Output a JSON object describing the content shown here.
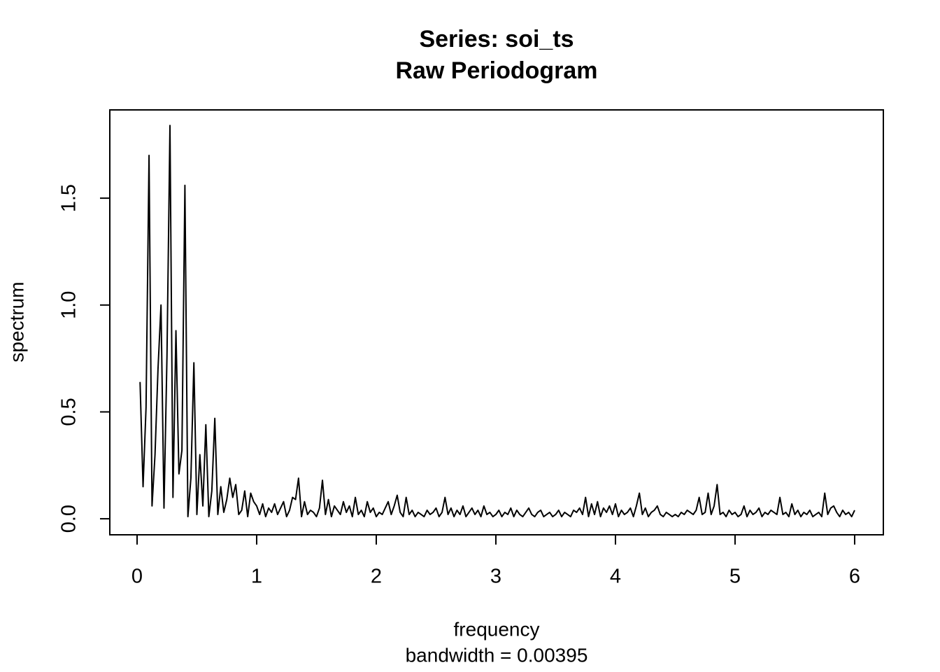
{
  "chart_data": {
    "type": "line",
    "title": "Series: soi_ts",
    "subtitle": "Raw Periodogram",
    "xlabel": "frequency",
    "sub": "bandwidth = 0.00395",
    "ylabel": "spectrum",
    "color": "#000000",
    "xlim": [
      -0.228,
      6.24
    ],
    "ylim": [
      -0.075,
      1.913
    ],
    "xticks": [
      0,
      1,
      2,
      3,
      4,
      5,
      6
    ],
    "yticks": [
      {
        "value": 0,
        "label": "0.0"
      },
      0.5,
      {
        "value": 1,
        "label": "1.0"
      },
      1.5
    ],
    "x": [
      0.025,
      0.05,
      0.075,
      0.1,
      0.125,
      0.15,
      0.175,
      0.2,
      0.225,
      0.25,
      0.275,
      0.3,
      0.325,
      0.35,
      0.375,
      0.4,
      0.425,
      0.45,
      0.475,
      0.5,
      0.525,
      0.55,
      0.575,
      0.6,
      0.625,
      0.65,
      0.675,
      0.7,
      0.725,
      0.75,
      0.775,
      0.8,
      0.825,
      0.85,
      0.875,
      0.9,
      0.925,
      0.95,
      0.975,
      1.0,
      1.025,
      1.05,
      1.075,
      1.1,
      1.125,
      1.15,
      1.175,
      1.2,
      1.225,
      1.25,
      1.275,
      1.3,
      1.325,
      1.35,
      1.375,
      1.4,
      1.425,
      1.45,
      1.475,
      1.5,
      1.525,
      1.55,
      1.575,
      1.6,
      1.625,
      1.65,
      1.675,
      1.7,
      1.725,
      1.75,
      1.775,
      1.8,
      1.825,
      1.85,
      1.875,
      1.9,
      1.925,
      1.95,
      1.975,
      2.0,
      2.025,
      2.05,
      2.075,
      2.1,
      2.125,
      2.15,
      2.175,
      2.2,
      2.225,
      2.25,
      2.275,
      2.3,
      2.325,
      2.35,
      2.375,
      2.4,
      2.425,
      2.45,
      2.475,
      2.5,
      2.525,
      2.55,
      2.575,
      2.6,
      2.625,
      2.65,
      2.675,
      2.7,
      2.725,
      2.75,
      2.775,
      2.8,
      2.825,
      2.85,
      2.875,
      2.9,
      2.925,
      2.95,
      2.975,
      3.0,
      3.025,
      3.05,
      3.075,
      3.1,
      3.125,
      3.15,
      3.175,
      3.2,
      3.225,
      3.25,
      3.275,
      3.3,
      3.325,
      3.35,
      3.375,
      3.4,
      3.425,
      3.45,
      3.475,
      3.5,
      3.525,
      3.55,
      3.575,
      3.6,
      3.625,
      3.65,
      3.675,
      3.7,
      3.725,
      3.75,
      3.775,
      3.8,
      3.825,
      3.85,
      3.875,
      3.9,
      3.925,
      3.95,
      3.975,
      4.0,
      4.025,
      4.05,
      4.075,
      4.1,
      4.125,
      4.15,
      4.175,
      4.2,
      4.225,
      4.25,
      4.275,
      4.3,
      4.325,
      4.35,
      4.375,
      4.4,
      4.425,
      4.45,
      4.475,
      4.5,
      4.525,
      4.55,
      4.575,
      4.6,
      4.625,
      4.65,
      4.675,
      4.7,
      4.725,
      4.75,
      4.775,
      4.8,
      4.825,
      4.85,
      4.875,
      4.9,
      4.925,
      4.95,
      4.975,
      5.0,
      5.025,
      5.05,
      5.075,
      5.1,
      5.125,
      5.15,
      5.175,
      5.2,
      5.225,
      5.25,
      5.275,
      5.3,
      5.325,
      5.35,
      5.375,
      5.4,
      5.425,
      5.45,
      5.475,
      5.5,
      5.525,
      5.55,
      5.575,
      5.6,
      5.625,
      5.65,
      5.675,
      5.7,
      5.725,
      5.75,
      5.775,
      5.8,
      5.825,
      5.85,
      5.875,
      5.9,
      5.925,
      5.95,
      5.975,
      6.0
    ],
    "values": [
      0.64,
      0.15,
      0.52,
      1.7,
      0.06,
      0.3,
      0.7,
      1.0,
      0.05,
      0.76,
      1.84,
      0.1,
      0.88,
      0.21,
      0.32,
      1.56,
      0.01,
      0.19,
      0.73,
      0.02,
      0.3,
      0.06,
      0.44,
      0.01,
      0.13,
      0.47,
      0.02,
      0.15,
      0.03,
      0.09,
      0.19,
      0.1,
      0.16,
      0.02,
      0.04,
      0.13,
      0.01,
      0.12,
      0.08,
      0.06,
      0.02,
      0.07,
      0.01,
      0.05,
      0.03,
      0.07,
      0.02,
      0.05,
      0.08,
      0.01,
      0.04,
      0.1,
      0.09,
      0.19,
      0.01,
      0.08,
      0.02,
      0.04,
      0.03,
      0.01,
      0.05,
      0.18,
      0.02,
      0.09,
      0.01,
      0.06,
      0.04,
      0.02,
      0.08,
      0.03,
      0.06,
      0.01,
      0.1,
      0.02,
      0.04,
      0.01,
      0.08,
      0.03,
      0.05,
      0.01,
      0.03,
      0.02,
      0.05,
      0.08,
      0.02,
      0.06,
      0.11,
      0.03,
      0.01,
      0.1,
      0.02,
      0.04,
      0.01,
      0.03,
      0.02,
      0.01,
      0.04,
      0.02,
      0.03,
      0.05,
      0.01,
      0.03,
      0.1,
      0.02,
      0.05,
      0.01,
      0.04,
      0.02,
      0.06,
      0.01,
      0.03,
      0.05,
      0.02,
      0.04,
      0.01,
      0.06,
      0.02,
      0.03,
      0.01,
      0.02,
      0.04,
      0.01,
      0.03,
      0.02,
      0.05,
      0.01,
      0.04,
      0.02,
      0.01,
      0.03,
      0.05,
      0.02,
      0.01,
      0.03,
      0.04,
      0.01,
      0.02,
      0.03,
      0.01,
      0.02,
      0.04,
      0.01,
      0.03,
      0.02,
      0.01,
      0.04,
      0.03,
      0.05,
      0.02,
      0.1,
      0.01,
      0.07,
      0.02,
      0.08,
      0.01,
      0.05,
      0.03,
      0.06,
      0.02,
      0.07,
      0.01,
      0.04,
      0.02,
      0.03,
      0.05,
      0.01,
      0.06,
      0.12,
      0.02,
      0.05,
      0.01,
      0.03,
      0.04,
      0.06,
      0.02,
      0.01,
      0.03,
      0.02,
      0.01,
      0.02,
      0.01,
      0.03,
      0.02,
      0.04,
      0.03,
      0.02,
      0.04,
      0.1,
      0.02,
      0.03,
      0.12,
      0.02,
      0.06,
      0.16,
      0.02,
      0.03,
      0.01,
      0.04,
      0.02,
      0.03,
      0.01,
      0.02,
      0.06,
      0.01,
      0.04,
      0.02,
      0.03,
      0.05,
      0.01,
      0.03,
      0.02,
      0.04,
      0.03,
      0.02,
      0.1,
      0.02,
      0.03,
      0.01,
      0.07,
      0.02,
      0.04,
      0.01,
      0.03,
      0.02,
      0.04,
      0.01,
      0.02,
      0.03,
      0.01,
      0.12,
      0.02,
      0.05,
      0.06,
      0.03,
      0.01,
      0.04,
      0.02,
      0.03,
      0.01,
      0.04
    ]
  }
}
